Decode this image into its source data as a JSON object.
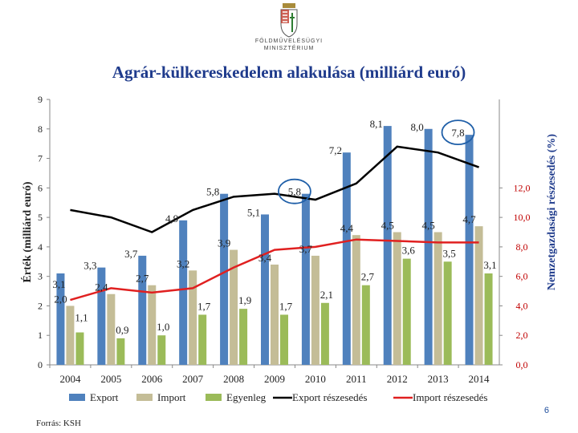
{
  "header": {
    "ministry_line1": "FÖLDMŰVELÉSÜGYI",
    "ministry_line2": "MINISZTÉRIUM",
    "slide_title": "Agrár-külkereskedelem alakulása (milliárd euró)"
  },
  "footer": {
    "source": "Forrás: KSH",
    "page_number": "6"
  },
  "colors": {
    "export": "#4f81bd",
    "import": "#c4bd97",
    "balance": "#9bbb59",
    "export_share": "#000000",
    "import_share": "#e02020",
    "highlight_circle": "#1f5fa8",
    "right_axis": "#c00000",
    "title": "#1f3b8c"
  },
  "chart_data": {
    "type": "bar",
    "categories": [
      "2004",
      "2005",
      "2006",
      "2007",
      "2008",
      "2009",
      "2010",
      "2011",
      "2012",
      "2013",
      "2014"
    ],
    "series": [
      {
        "name": "Export",
        "axis": "left",
        "kind": "bar",
        "values": [
          3.1,
          3.3,
          3.7,
          4.9,
          5.8,
          5.1,
          5.8,
          7.2,
          8.1,
          8.0,
          7.8
        ]
      },
      {
        "name": "Import",
        "axis": "left",
        "kind": "bar",
        "values": [
          2.0,
          2.4,
          2.7,
          3.2,
          3.9,
          3.4,
          3.7,
          4.4,
          4.5,
          4.5,
          4.7
        ]
      },
      {
        "name": "Egyenleg",
        "axis": "left",
        "kind": "bar",
        "values": [
          1.1,
          0.9,
          1.0,
          1.7,
          1.9,
          1.7,
          2.1,
          2.7,
          3.6,
          3.5,
          3.1
        ]
      },
      {
        "name": "Export részesedés",
        "axis": "right",
        "kind": "line",
        "values": [
          10.5,
          10.0,
          9.0,
          10.5,
          11.4,
          11.6,
          11.2,
          12.3,
          14.8,
          14.4,
          13.4
        ]
      },
      {
        "name": "Import részesedés",
        "axis": "right",
        "kind": "line",
        "values": [
          4.4,
          5.2,
          4.9,
          5.2,
          6.6,
          7.8,
          8.0,
          8.5,
          8.4,
          8.3,
          8.3
        ]
      }
    ],
    "data_labels": [
      {
        "category": "2004",
        "text": "3,1",
        "series": "Export"
      },
      {
        "category": "2005",
        "text": "3,3",
        "series": "Export"
      },
      {
        "category": "2006",
        "text": "3,7",
        "series": "Export"
      },
      {
        "category": "2007",
        "text": "4,9",
        "series": "Export"
      },
      {
        "category": "2008",
        "text": "5,8",
        "series": "Export"
      },
      {
        "category": "2009",
        "text": "5,1",
        "series": "Export"
      },
      {
        "category": "2010",
        "text": "5,8",
        "series": "Export",
        "highlighted": true
      },
      {
        "category": "2011",
        "text": "7,2",
        "series": "Export"
      },
      {
        "category": "2012",
        "text": "8,1",
        "series": "Export"
      },
      {
        "category": "2013",
        "text": "8,0",
        "series": "Export"
      },
      {
        "category": "2014",
        "text": "7,8",
        "series": "Export",
        "highlighted": true
      },
      {
        "category": "2004",
        "text": "2,0",
        "series": "Import"
      },
      {
        "category": "2005",
        "text": "2,4",
        "series": "Import"
      },
      {
        "category": "2006",
        "text": "2,7",
        "series": "Import"
      },
      {
        "category": "2007",
        "text": "3,2",
        "series": "Import"
      },
      {
        "category": "2008",
        "text": "3,9",
        "series": "Import"
      },
      {
        "category": "2009",
        "text": "3,4",
        "series": "Import"
      },
      {
        "category": "2010",
        "text": "3,7",
        "series": "Import"
      },
      {
        "category": "2011",
        "text": "4,4",
        "series": "Import"
      },
      {
        "category": "2012",
        "text": "4,5",
        "series": "Import"
      },
      {
        "category": "2013",
        "text": "4,5",
        "series": "Import"
      },
      {
        "category": "2014",
        "text": "4,7",
        "series": "Import"
      },
      {
        "category": "2004",
        "text": "1,1",
        "series": "Egyenleg"
      },
      {
        "category": "2005",
        "text": "0,9",
        "series": "Egyenleg"
      },
      {
        "category": "2006",
        "text": "1,0",
        "series": "Egyenleg"
      },
      {
        "category": "2007",
        "text": "1,7",
        "series": "Egyenleg"
      },
      {
        "category": "2008",
        "text": "1,9",
        "series": "Egyenleg"
      },
      {
        "category": "2009",
        "text": "1,7",
        "series": "Egyenleg"
      },
      {
        "category": "2010",
        "text": "2,1",
        "series": "Egyenleg"
      },
      {
        "category": "2011",
        "text": "2,7",
        "series": "Egyenleg"
      },
      {
        "category": "2012",
        "text": "3,6",
        "series": "Egyenleg"
      },
      {
        "category": "2013",
        "text": "3,5",
        "series": "Egyenleg"
      },
      {
        "category": "2014",
        "text": "3,1",
        "series": "Egyenleg"
      }
    ],
    "left_axis": {
      "label": "Érték (milliárd euró)",
      "range": [
        0,
        9
      ],
      "ticks": [
        "0",
        "1",
        "2",
        "3",
        "4",
        "5",
        "6",
        "7",
        "8",
        "9"
      ]
    },
    "right_axis": {
      "label": "Nemzetgazdasági részesedés (%)",
      "range": [
        0,
        18
      ],
      "ticks": [
        "0,0",
        "2,0",
        "4,0",
        "6,0",
        "8,0",
        "10,0",
        "12,0"
      ]
    },
    "legend": {
      "position": "bottom",
      "entries": [
        "Export",
        "Import",
        "Egyenleg",
        "Export részesedés",
        "Import részesedés"
      ]
    }
  }
}
